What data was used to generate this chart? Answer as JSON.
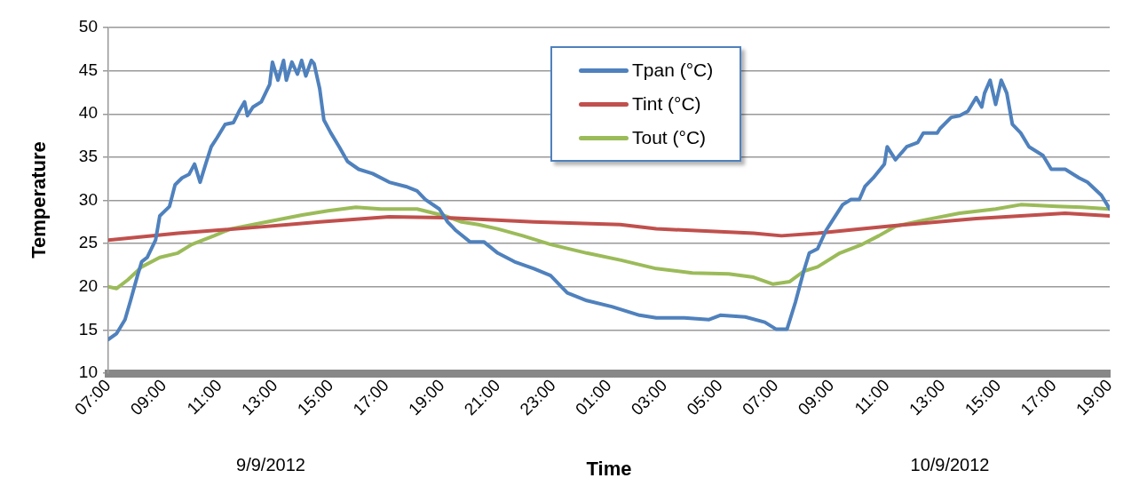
{
  "chart_data": {
    "type": "line",
    "xlabel": "Time",
    "ylabel": "Temperature",
    "annotations": [
      "9/9/2012",
      "10/9/2012"
    ],
    "xlim": [
      "2012-09-09T07:00",
      "2012-09-10T19:00"
    ],
    "xticks": [
      {
        "value": "2012-09-09T07:00",
        "label": "07:00"
      },
      {
        "value": "2012-09-09T09:00",
        "label": "09:00"
      },
      {
        "value": "2012-09-09T11:00",
        "label": "11:00"
      },
      {
        "value": "2012-09-09T13:00",
        "label": "13:00"
      },
      {
        "value": "2012-09-09T15:00",
        "label": "15:00"
      },
      {
        "value": "2012-09-09T17:00",
        "label": "17:00"
      },
      {
        "value": "2012-09-09T19:00",
        "label": "19:00"
      },
      {
        "value": "2012-09-09T21:00",
        "label": "21:00"
      },
      {
        "value": "2012-09-09T23:00",
        "label": "23:00"
      },
      {
        "value": "2012-09-10T01:00",
        "label": "01:00"
      },
      {
        "value": "2012-09-10T03:00",
        "label": "03:00"
      },
      {
        "value": "2012-09-10T05:00",
        "label": "05:00"
      },
      {
        "value": "2012-09-10T07:00",
        "label": "07:00"
      },
      {
        "value": "2012-09-10T09:00",
        "label": "09:00"
      },
      {
        "value": "2012-09-10T11:00",
        "label": "11:00"
      },
      {
        "value": "2012-09-10T13:00",
        "label": "13:00"
      },
      {
        "value": "2012-09-10T15:00",
        "label": "15:00"
      },
      {
        "value": "2012-09-10T17:00",
        "label": "17:00"
      },
      {
        "value": "2012-09-10T19:00",
        "label": "19:00"
      }
    ],
    "ylim": [
      10,
      50
    ],
    "yticks": [
      10,
      15,
      20,
      25,
      30,
      35,
      40,
      45,
      50
    ],
    "grid": "y",
    "legend": "top",
    "marker": "none",
    "line_style": "solid",
    "series": [
      {
        "name": "Tpan (°C)",
        "color": "#4f81bd",
        "x": [
          "2012-09-09T07:00",
          "2012-09-09T07:18",
          "2012-09-09T07:36",
          "2012-09-09T07:48",
          "2012-09-09T08:03",
          "2012-09-09T08:12",
          "2012-09-09T08:24",
          "2012-09-09T08:42",
          "2012-09-09T08:51",
          "2012-09-09T09:12",
          "2012-09-09T09:24",
          "2012-09-09T09:39",
          "2012-09-09T09:54",
          "2012-09-09T10:06",
          "2012-09-09T10:18",
          "2012-09-09T10:30",
          "2012-09-09T10:42",
          "2012-09-09T10:54",
          "2012-09-09T11:12",
          "2012-09-09T11:30",
          "2012-09-09T11:42",
          "2012-09-09T11:54",
          "2012-09-09T12:00",
          "2012-09-09T12:12",
          "2012-09-09T12:30",
          "2012-09-09T12:48",
          "2012-09-09T12:54",
          "2012-09-09T13:06",
          "2012-09-09T13:18",
          "2012-09-09T13:24",
          "2012-09-09T13:36",
          "2012-09-09T13:48",
          "2012-09-09T13:57",
          "2012-09-09T14:06",
          "2012-09-09T14:18",
          "2012-09-09T14:24",
          "2012-09-09T14:36",
          "2012-09-09T14:45",
          "2012-09-09T15:00",
          "2012-09-09T15:18",
          "2012-09-09T15:36",
          "2012-09-09T16:00",
          "2012-09-09T16:30",
          "2012-09-09T17:06",
          "2012-09-09T17:42",
          "2012-09-09T18:06",
          "2012-09-09T18:24",
          "2012-09-09T18:54",
          "2012-09-09T19:12",
          "2012-09-09T19:30",
          "2012-09-09T20:00",
          "2012-09-09T20:30",
          "2012-09-09T21:00",
          "2012-09-09T21:36",
          "2012-09-09T22:18",
          "2012-09-09T22:54",
          "2012-09-09T23:30",
          "2012-09-10T00:12",
          "2012-09-10T01:06",
          "2012-09-10T02:06",
          "2012-09-10T02:42",
          "2012-09-10T03:42",
          "2012-09-10T04:36",
          "2012-09-10T05:00",
          "2012-09-10T05:54",
          "2012-09-10T06:36",
          "2012-09-10T07:00",
          "2012-09-10T07:24",
          "2012-09-10T07:42",
          "2012-09-10T08:00",
          "2012-09-10T08:12",
          "2012-09-10T08:30",
          "2012-09-10T08:48",
          "2012-09-10T09:06",
          "2012-09-10T09:24",
          "2012-09-10T09:42",
          "2012-09-10T10:00",
          "2012-09-10T10:12",
          "2012-09-10T10:30",
          "2012-09-10T10:54",
          "2012-09-10T11:00",
          "2012-09-10T11:18",
          "2012-09-10T11:42",
          "2012-09-10T12:06",
          "2012-09-10T12:18",
          "2012-09-10T12:48",
          "2012-09-10T12:54",
          "2012-09-10T13:18",
          "2012-09-10T13:36",
          "2012-09-10T13:54",
          "2012-09-10T14:12",
          "2012-09-10T14:24",
          "2012-09-10T14:30",
          "2012-09-10T14:42",
          "2012-09-10T14:54",
          "2012-09-10T15:06",
          "2012-09-10T15:18",
          "2012-09-10T15:30",
          "2012-09-10T15:48",
          "2012-09-10T16:06",
          "2012-09-10T16:36",
          "2012-09-10T16:54",
          "2012-09-10T17:24",
          "2012-09-10T17:54",
          "2012-09-10T18:12",
          "2012-09-10T18:42",
          "2012-09-10T19:00"
        ],
        "values": [
          13.9,
          14.6,
          16.2,
          18.4,
          21.3,
          22.9,
          23.4,
          25.4,
          28.2,
          29.3,
          31.8,
          32.6,
          33.0,
          34.2,
          32.1,
          34.2,
          36.2,
          37.2,
          38.8,
          39.0,
          40.3,
          41.4,
          39.8,
          40.8,
          41.4,
          43.4,
          46.0,
          43.9,
          46.2,
          43.9,
          46.0,
          44.6,
          46.2,
          44.4,
          46.2,
          45.8,
          42.9,
          39.3,
          37.8,
          36.2,
          34.5,
          33.6,
          33.1,
          32.1,
          31.6,
          31.1,
          30.1,
          29.0,
          27.5,
          26.5,
          25.2,
          25.2,
          23.9,
          22.9,
          22.1,
          21.3,
          19.3,
          18.4,
          17.7,
          16.7,
          16.4,
          16.4,
          16.2,
          16.7,
          16.5,
          15.9,
          15.1,
          15.1,
          18.2,
          21.8,
          23.9,
          24.4,
          26.5,
          28.0,
          29.5,
          30.1,
          30.1,
          31.6,
          32.6,
          34.2,
          36.2,
          34.7,
          36.2,
          36.7,
          37.8,
          37.8,
          38.3,
          39.6,
          39.8,
          40.3,
          41.9,
          40.8,
          42.4,
          43.9,
          41.1,
          43.9,
          42.4,
          38.8,
          37.8,
          36.2,
          35.2,
          33.6,
          33.6,
          32.6,
          32.1,
          30.6,
          29.0
        ]
      },
      {
        "name": "Tint (°C)",
        "color": "#c0504d",
        "x": [
          "2012-09-09T07:00",
          "2012-09-09T09:30",
          "2012-09-09T12:00",
          "2012-09-09T14:36",
          "2012-09-09T17:06",
          "2012-09-09T19:06",
          "2012-09-09T22:18",
          "2012-09-10T01:24",
          "2012-09-10T02:42",
          "2012-09-10T06:12",
          "2012-09-10T07:12",
          "2012-09-10T08:30",
          "2012-09-10T11:00",
          "2012-09-10T14:12",
          "2012-09-10T17:24",
          "2012-09-10T19:00"
        ],
        "values": [
          25.4,
          26.2,
          26.8,
          27.5,
          28.1,
          28.0,
          27.5,
          27.2,
          26.7,
          26.2,
          25.9,
          26.2,
          27.0,
          27.9,
          28.5,
          28.2
        ]
      },
      {
        "name": "Tout (°C)",
        "color": "#9bbb59",
        "x": [
          "2012-09-09T07:00",
          "2012-09-09T07:18",
          "2012-09-09T07:42",
          "2012-09-09T08:12",
          "2012-09-09T08:51",
          "2012-09-09T09:30",
          "2012-09-09T10:00",
          "2012-09-09T10:48",
          "2012-09-09T11:24",
          "2012-09-09T12:42",
          "2012-09-09T13:58",
          "2012-09-09T14:54",
          "2012-09-09T15:54",
          "2012-09-09T16:48",
          "2012-09-09T18:06",
          "2012-09-09T19:06",
          "2012-09-09T19:42",
          "2012-09-09T20:18",
          "2012-09-09T21:00",
          "2012-09-09T21:54",
          "2012-09-09T22:54",
          "2012-09-10T00:12",
          "2012-09-10T01:24",
          "2012-09-10T02:42",
          "2012-09-10T04:00",
          "2012-09-10T05:18",
          "2012-09-10T06:12",
          "2012-09-10T06:54",
          "2012-09-10T07:30",
          "2012-09-10T08:00",
          "2012-09-10T08:30",
          "2012-09-10T09:18",
          "2012-09-10T10:06",
          "2012-09-10T10:42",
          "2012-09-10T11:18",
          "2012-09-10T12:18",
          "2012-09-10T13:36",
          "2012-09-10T14:54",
          "2012-09-10T15:48",
          "2012-09-10T17:06",
          "2012-09-10T18:00",
          "2012-09-10T19:00"
        ],
        "values": [
          20.0,
          19.8,
          20.8,
          22.3,
          23.4,
          23.9,
          24.9,
          25.9,
          26.7,
          27.5,
          28.3,
          28.8,
          29.2,
          29.0,
          29.0,
          28.2,
          27.5,
          27.2,
          26.7,
          25.9,
          24.9,
          23.9,
          23.1,
          22.1,
          21.6,
          21.5,
          21.1,
          20.3,
          20.6,
          21.8,
          22.3,
          23.9,
          24.9,
          25.9,
          27.0,
          27.7,
          28.5,
          29.0,
          29.5,
          29.3,
          29.2,
          29.0
        ]
      }
    ]
  }
}
